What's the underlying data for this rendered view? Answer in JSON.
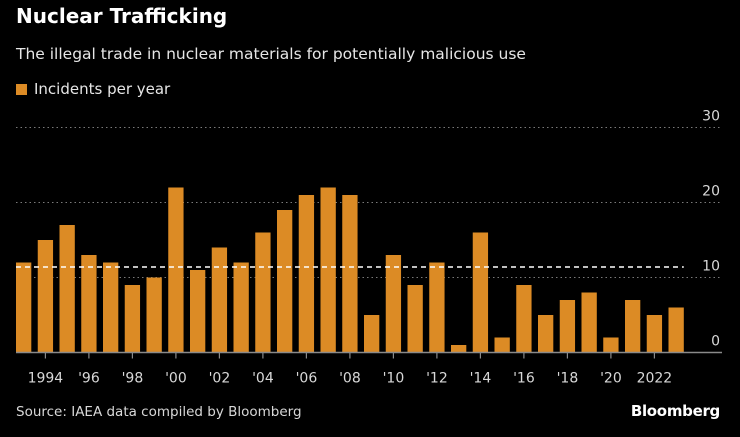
{
  "chart_data": {
    "type": "bar",
    "title": "Nuclear Trafficking",
    "subtitle": "The illegal trade in nuclear materials for potentially malicious use",
    "legend": [
      {
        "name": "Incidents per year",
        "color": "#dc8b25"
      }
    ],
    "legend_placement": "top-left",
    "categories": [
      1993,
      1994,
      1995,
      1996,
      1997,
      1998,
      1999,
      2000,
      2001,
      2002,
      2003,
      2004,
      2005,
      2006,
      2007,
      2008,
      2009,
      2010,
      2011,
      2012,
      2013,
      2014,
      2015,
      2016,
      2017,
      2018,
      2019,
      2020,
      2021,
      2022,
      2023
    ],
    "series": [
      {
        "name": "Incidents per year",
        "values": [
          12,
          15,
          17,
          13,
          12,
          9,
          10,
          22,
          11,
          14,
          12,
          16,
          19,
          21,
          22,
          21,
          5,
          13,
          9,
          12,
          1,
          16,
          2,
          9,
          5,
          7,
          8,
          2,
          7,
          5,
          6
        ]
      }
    ],
    "x_tick_labels": [
      {
        "year": 1994,
        "label": "1994"
      },
      {
        "year": 1996,
        "label": "'96"
      },
      {
        "year": 1998,
        "label": "'98"
      },
      {
        "year": 2000,
        "label": "'00"
      },
      {
        "year": 2002,
        "label": "'02"
      },
      {
        "year": 2004,
        "label": "'04"
      },
      {
        "year": 2006,
        "label": "'06"
      },
      {
        "year": 2008,
        "label": "'08"
      },
      {
        "year": 2010,
        "label": "'10"
      },
      {
        "year": 2012,
        "label": "'12"
      },
      {
        "year": 2014,
        "label": "'14"
      },
      {
        "year": 2016,
        "label": "'16"
      },
      {
        "year": 2018,
        "label": "'18"
      },
      {
        "year": 2020,
        "label": "'20"
      },
      {
        "year": 2022,
        "label": "2022"
      }
    ],
    "y_ticks": [
      0,
      10,
      20,
      30
    ],
    "ylim": [
      0,
      30
    ],
    "y_axis_side": "right",
    "grid": "horizontal dotted",
    "reference_line": {
      "style": "dashed",
      "value": 11.4,
      "color": "#ffffff"
    },
    "bar_color": "#dc8b25",
    "background": "#000000",
    "xlabel": "",
    "ylabel": ""
  },
  "footer": {
    "source": "Source: IAEA data compiled by Bloomberg",
    "logo": "Bloomberg"
  }
}
